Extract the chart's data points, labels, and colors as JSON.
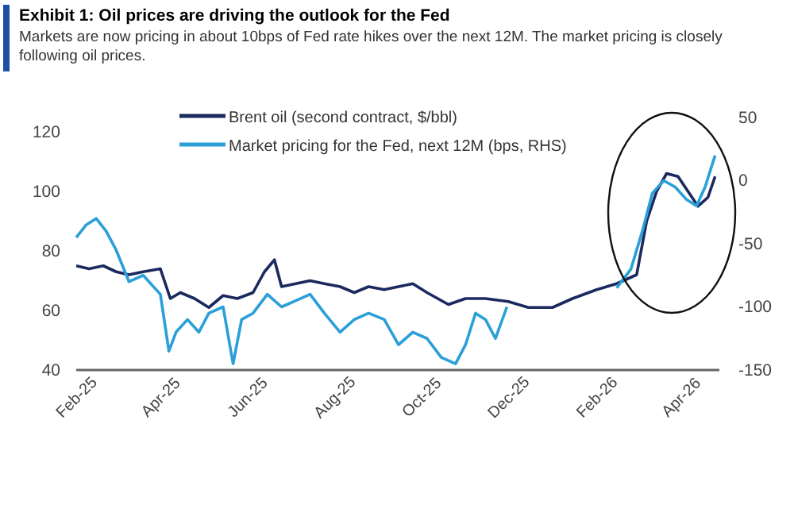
{
  "chart_data": {
    "type": "line",
    "title": "Exhibit 1: Oil prices are driving the outlook for the Fed",
    "subtitle": "Markets are now pricing in about 10bps of Fed rate hikes over the next 12M. The market pricing is closely following oil prices.",
    "xlim": [
      "2025-02-01",
      "2026-04-28"
    ],
    "xticks": [
      {
        "value": "2025-02-01",
        "label": "Feb-25"
      },
      {
        "value": "2025-04-01",
        "label": "Apr-25"
      },
      {
        "value": "2025-06-01",
        "label": "Jun-25"
      },
      {
        "value": "2025-08-01",
        "label": "Aug-25"
      },
      {
        "value": "2025-10-01",
        "label": "Oct-25"
      },
      {
        "value": "2025-12-01",
        "label": "Dec-25"
      },
      {
        "value": "2026-02-01",
        "label": "Feb-26"
      },
      {
        "value": "2026-04-01",
        "label": "Apr-26"
      }
    ],
    "ylim": [
      40,
      120
    ],
    "yticks": [
      40,
      60,
      80,
      100,
      120
    ],
    "y2lim": [
      -150,
      50
    ],
    "y2ticks": [
      -150,
      -100,
      -50,
      0,
      50
    ],
    "grid": false,
    "legend": "top",
    "series": [
      {
        "name": "Brent oil (second contract, $/bbl)",
        "color": "#1b2a5e",
        "x": [
          "2025-02-01",
          "2025-02-10",
          "2025-02-20",
          "2025-03-01",
          "2025-03-10",
          "2025-03-20",
          "2025-04-01",
          "2025-04-08",
          "2025-04-15",
          "2025-04-25",
          "2025-05-05",
          "2025-05-15",
          "2025-05-25",
          "2025-06-05",
          "2025-06-13",
          "2025-06-20",
          "2025-06-25",
          "2025-07-05",
          "2025-07-15",
          "2025-07-25",
          "2025-08-05",
          "2025-08-15",
          "2025-08-25",
          "2025-09-05",
          "2025-09-15",
          "2025-09-25",
          "2025-10-05",
          "2025-10-20",
          "2025-11-01",
          "2025-11-15",
          "2025-12-01",
          "2025-12-15",
          "2026-01-01",
          "2026-01-15",
          "2026-02-01",
          "2026-02-15",
          "2026-03-01",
          "2026-03-08",
          "2026-03-15",
          "2026-03-22",
          "2026-03-30",
          "2026-04-06",
          "2026-04-13",
          "2026-04-20",
          "2026-04-25"
        ],
        "values": [
          75,
          74,
          75,
          73,
          72,
          73,
          74,
          64,
          66,
          64,
          61,
          65,
          64,
          66,
          73,
          77,
          68,
          69,
          70,
          69,
          68,
          66,
          68,
          67,
          68,
          69,
          66,
          62,
          64,
          64,
          63,
          61,
          61,
          64,
          67,
          69,
          72,
          90,
          100,
          106,
          105,
          100,
          95,
          98,
          105
        ]
      },
      {
        "name": "Market pricing for the Fed, next 12M (bps, RHS)",
        "color": "#2a9fd8",
        "axis": "y2",
        "x": [
          "2025-02-01",
          "2025-02-08",
          "2025-02-15",
          "2025-02-22",
          "2025-03-01",
          "2025-03-10",
          "2025-03-20",
          "2025-04-01",
          "2025-04-07",
          "2025-04-12",
          "2025-04-20",
          "2025-04-28",
          "2025-05-05",
          "2025-05-15",
          "2025-05-22",
          "2025-05-28",
          "2025-06-05",
          "2025-06-15",
          "2025-06-25",
          "2025-07-05",
          "2025-07-15",
          "2025-07-25",
          "2025-08-05",
          "2025-08-15",
          "2025-08-25",
          "2025-09-05",
          "2025-09-15",
          "2025-09-25",
          "2025-10-05",
          "2025-10-15",
          "2025-10-25",
          "2025-11-01",
          "2025-11-08",
          "2025-11-15",
          "2025-11-22",
          "2025-11-30",
          "2025-12-15",
          "2026-01-15",
          "2026-02-15",
          "2026-02-25",
          "2026-03-05",
          "2026-03-12",
          "2026-03-20",
          "2026-03-28",
          "2026-04-05",
          "2026-04-12",
          "2026-04-18",
          "2026-04-25"
        ],
        "values": [
          -45,
          -35,
          -30,
          -40,
          -55,
          -80,
          -75,
          -90,
          -135,
          -120,
          -110,
          -120,
          -105,
          -100,
          -145,
          -110,
          -105,
          -90,
          -100,
          -95,
          -90,
          -105,
          -120,
          -110,
          -105,
          -110,
          -130,
          -120,
          -125,
          -140,
          -145,
          -130,
          -105,
          -110,
          -125,
          -100,
          null,
          null,
          -85,
          -70,
          -40,
          -10,
          0,
          -5,
          -15,
          -20,
          -5,
          20
        ]
      }
    ]
  }
}
